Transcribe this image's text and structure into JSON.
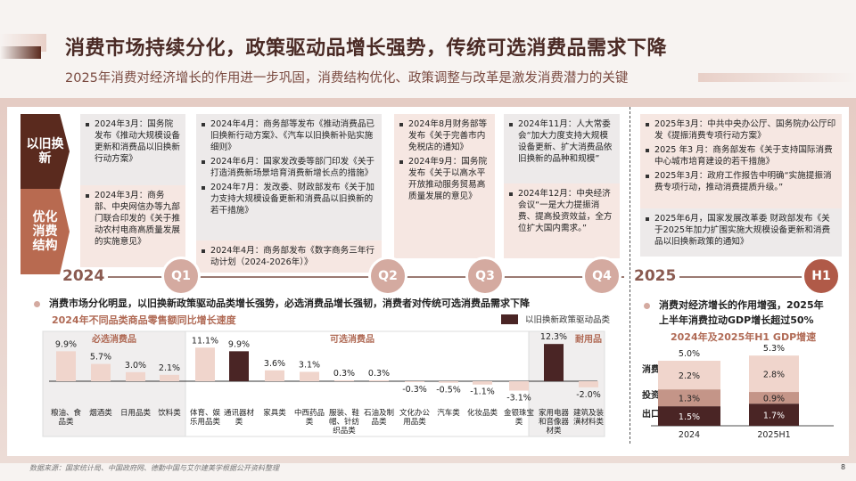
{
  "title": "消费市场持续分化，政策驱动品增长强势，传统可选消费品需求下降",
  "subtitle": "2025年消费对经济增长的作用进一步巩固，消费结构优化、政策调整与改革是激发消费潜力的关键",
  "timeline": {
    "row_labels": [
      "以旧换新",
      "优化消费结构"
    ],
    "years": [
      "2024",
      "2025"
    ],
    "periods": [
      "Q1",
      "Q2",
      "Q3",
      "Q4",
      "H1"
    ],
    "q1_top": [
      "2024年3月：国务院发布《推动大规模设备更新和消费品以旧换新行动方案》"
    ],
    "q1_bottom": [
      "2024年3月：商务部、中央网信办等九部门联合印发的《关于推动农村电商高质量发展的实施意见》"
    ],
    "q2_top": [
      "2024年4月：商务部等发布《推动消费品已旧换新行动方案》、《汽车以旧换新补贴实施细则》",
      "2024年6月：国家发改委等部门印发《关于打造消费新场景培育消费新增长点的措施》",
      "2024年7月：发改委、财政部发布《关于加力支持大规模设备更新和消费品以旧换新的若干措施》"
    ],
    "q2_bottom": [
      "2024年4月：商务部发布《数字商务三年行动计划（2024-2026年）》"
    ],
    "q3": [
      "2024年8月财务部等发布《关于完善市内免税店的通知》",
      "2024年9月：国务院发布《关于以高水平开放推动服务贸易高质量发展的意见》"
    ],
    "q4_top": [
      "2024年11月：人大常委会“加大力度支持大规模设备更新、扩大消费品依旧换新的品种和规模”"
    ],
    "q4_bottom": [
      "2024年12月：中央经济会议“一是大力提振消费、提高投资效益，全方位扩大国内需求。”"
    ],
    "h1_top": [
      "2025年3月：中共中央办公厅、国务院办公厅印发《提振消费专项行动方案》",
      "2025 年3 月：商务部发布《关于支持国际消费中心城市培育建设的若干措施》",
      "2025年3月：政府工作报告中明确“实施提振消费专项行动，推动消费提质升级。”"
    ],
    "h1_bottom": [
      "2025年6月，国家发展改革委 财政部发布《关于2025年加力扩围实施大规模设备更新和消费品以旧换新政策的通知》"
    ]
  },
  "left_bullet": "消费市场分化明显，以旧换新政策驱动品类增长强势，必选消费品增长强韧，消费者对传统可选消费品需求下降",
  "right_bullet": [
    "消费对经济增长的作用增强，2025年",
    "上半年消费拉动GDP增长超过50%"
  ],
  "chart_data": [
    {
      "type": "bar",
      "title": "2024年不同品类商品零售额同比增长速度",
      "groups": [
        "必选消费品",
        "可选消费品",
        "耐用品"
      ],
      "legend": "以旧换新政策驱动品类",
      "categories": [
        "粮油、食品类",
        "烟酒类",
        "日用品类",
        "饮料类",
        "体育、娱乐用品类",
        "通讯器材类",
        "家具类",
        "中西药品类",
        "服装、鞋帽、针纺织品类",
        "石油及制品类",
        "文化办公用品类",
        "汽车类",
        "化妆品类",
        "金银珠宝类",
        "家用电器和音像器材类",
        "建筑及装潢材料类"
      ],
      "values": [
        9.9,
        5.7,
        3.0,
        2.1,
        11.1,
        9.9,
        3.6,
        3.1,
        0.3,
        0.3,
        -0.3,
        -0.5,
        -1.1,
        -3.1,
        12.3,
        -2.0
      ],
      "labels": [
        "9.9%",
        "5.7%",
        "3.0%",
        "2.1%",
        "11.1%",
        "9.9%",
        "3.6%",
        "3.1%",
        "0.3%",
        "0.3%",
        "-0.3%",
        "-0.5%",
        "-1.1%",
        "-3.1%",
        "12.3%",
        "-2.0%"
      ],
      "policy_driven": [
        false,
        false,
        false,
        false,
        false,
        true,
        false,
        false,
        false,
        false,
        false,
        false,
        false,
        false,
        true,
        false
      ],
      "colors": {
        "normal": "#f0d5cc",
        "policy": "#4a2525"
      }
    },
    {
      "type": "bar",
      "stacked": true,
      "title": "2024年及2025年H1 GDP增速",
      "categories": [
        "2024",
        "2025H1"
      ],
      "totals": [
        "5.0%",
        "5.3%"
      ],
      "series": [
        {
          "name": "出口",
          "values": [
            1.5,
            1.7
          ],
          "labels": [
            "1.5%",
            "1.7%"
          ],
          "color": "#4a2525"
        },
        {
          "name": "投资",
          "values": [
            1.3,
            0.9
          ],
          "labels": [
            "1.3%",
            "0.9%"
          ],
          "color": "#c49588"
        },
        {
          "name": "消费",
          "values": [
            2.2,
            2.8
          ],
          "labels": [
            "2.2%",
            "2.8%"
          ],
          "color": "#f0d5cc"
        }
      ]
    }
  ],
  "footer": "数据来源：国家统计局、中国政府网、德勤中国与艾尔建美学根据公开资料整理",
  "page_number": "8"
}
